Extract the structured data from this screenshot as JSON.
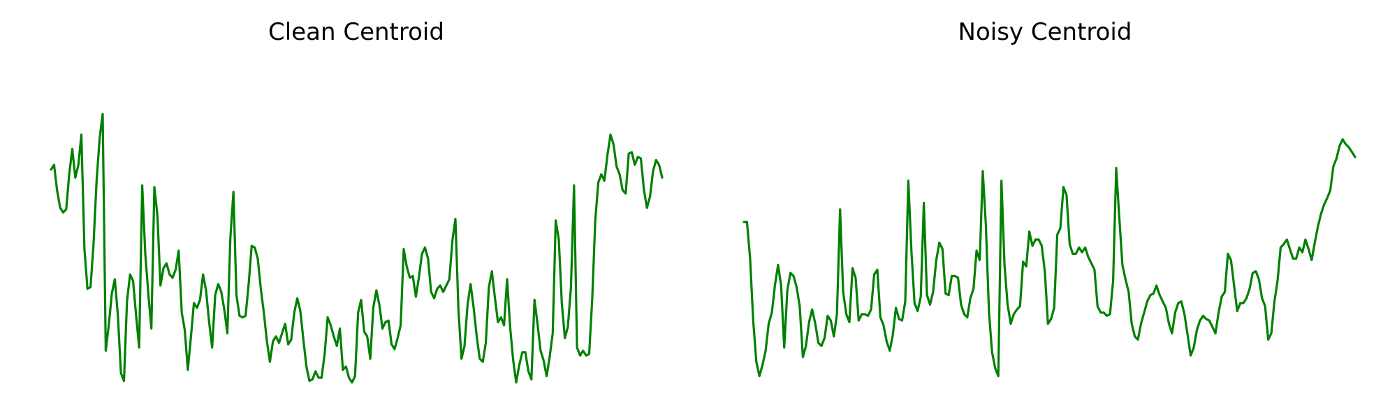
{
  "figure": {
    "background": "#ffffff"
  },
  "chart_data": [
    {
      "type": "line",
      "title": "Clean Centroid",
      "xlabel": "",
      "ylabel": "",
      "axes_visible": false,
      "grid": false,
      "color": "#008000",
      "ylim": [
        -1.0,
        1.0
      ],
      "values": [
        0.35,
        0.38,
        0.22,
        0.11,
        0.08,
        0.1,
        0.32,
        0.48,
        0.3,
        0.38,
        0.57,
        -0.15,
        -0.4,
        -0.39,
        -0.12,
        0.28,
        0.55,
        0.7,
        -0.79,
        -0.63,
        -0.43,
        -0.34,
        -0.57,
        -0.93,
        -0.98,
        -0.48,
        -0.31,
        -0.35,
        -0.57,
        -0.77,
        0.25,
        -0.18,
        -0.43,
        -0.65,
        0.24,
        0.06,
        -0.38,
        -0.27,
        -0.24,
        -0.31,
        -0.33,
        -0.28,
        -0.16,
        -0.55,
        -0.66,
        -0.91,
        -0.71,
        -0.49,
        -0.52,
        -0.47,
        -0.31,
        -0.41,
        -0.61,
        -0.77,
        -0.44,
        -0.37,
        -0.42,
        -0.53,
        -0.68,
        -0.08,
        0.21,
        -0.44,
        -0.57,
        -0.58,
        -0.57,
        -0.37,
        -0.13,
        -0.14,
        -0.21,
        -0.4,
        -0.55,
        -0.73,
        -0.86,
        -0.73,
        -0.7,
        -0.74,
        -0.68,
        -0.62,
        -0.75,
        -0.72,
        -0.55,
        -0.46,
        -0.54,
        -0.72,
        -0.89,
        -0.98,
        -0.97,
        -0.92,
        -0.96,
        -0.96,
        -0.81,
        -0.58,
        -0.63,
        -0.7,
        -0.76,
        -0.65,
        -0.91,
        -0.89,
        -0.96,
        -0.99,
        -0.95,
        -0.55,
        -0.47,
        -0.67,
        -0.7,
        -0.84,
        -0.52,
        -0.41,
        -0.5,
        -0.65,
        -0.61,
        -0.6,
        -0.75,
        -0.78,
        -0.71,
        -0.63,
        -0.15,
        -0.26,
        -0.33,
        -0.32,
        -0.45,
        -0.33,
        -0.18,
        -0.14,
        -0.21,
        -0.42,
        -0.46,
        -0.4,
        -0.38,
        -0.42,
        -0.38,
        -0.34,
        -0.1,
        0.04,
        -0.53,
        -0.84,
        -0.76,
        -0.5,
        -0.37,
        -0.52,
        -0.7,
        -0.84,
        -0.86,
        -0.74,
        -0.39,
        -0.29,
        -0.46,
        -0.61,
        -0.58,
        -0.63,
        -0.34,
        -0.64,
        -0.85,
        -0.99,
        -0.88,
        -0.8,
        -0.8,
        -0.92,
        -0.97,
        -0.47,
        -0.62,
        -0.79,
        -0.85,
        -0.95,
        -0.83,
        -0.68,
        0.03,
        -0.09,
        -0.49,
        -0.71,
        -0.64,
        -0.39,
        0.25,
        -0.77,
        -0.82,
        -0.79,
        -0.82,
        -0.81,
        -0.46,
        0.03,
        0.27,
        0.32,
        0.28,
        0.44,
        0.57,
        0.51,
        0.37,
        0.32,
        0.22,
        0.2,
        0.45,
        0.46,
        0.38,
        0.43,
        0.42,
        0.22,
        0.11,
        0.18,
        0.34,
        0.41,
        0.38,
        0.3
      ]
    },
    {
      "type": "line",
      "title": "Noisy Centroid",
      "xlabel": "",
      "ylabel": "",
      "axes_visible": false,
      "grid": false,
      "color": "#008000",
      "ylim": [
        -1.0,
        1.0
      ],
      "values": [
        0.02,
        0.02,
        -0.21,
        -0.6,
        -0.86,
        -0.95,
        -0.88,
        -0.79,
        -0.62,
        -0.55,
        -0.38,
        -0.25,
        -0.38,
        -0.77,
        -0.41,
        -0.3,
        -0.32,
        -0.39,
        -0.51,
        -0.83,
        -0.76,
        -0.61,
        -0.53,
        -0.62,
        -0.74,
        -0.76,
        -0.71,
        -0.57,
        -0.6,
        -0.7,
        -0.56,
        0.1,
        -0.42,
        -0.56,
        -0.61,
        -0.27,
        -0.33,
        -0.6,
        -0.56,
        -0.56,
        -0.57,
        -0.53,
        -0.31,
        -0.28,
        -0.58,
        -0.63,
        -0.73,
        -0.79,
        -0.69,
        -0.52,
        -0.59,
        -0.6,
        -0.48,
        0.28,
        -0.16,
        -0.49,
        -0.54,
        -0.45,
        0.14,
        -0.44,
        -0.5,
        -0.42,
        -0.22,
        -0.11,
        -0.15,
        -0.43,
        -0.44,
        -0.32,
        -0.32,
        -0.33,
        -0.5,
        -0.56,
        -0.58,
        -0.46,
        -0.4,
        -0.16,
        -0.22,
        0.34,
        0.0,
        -0.55,
        -0.8,
        -0.9,
        -0.95,
        0.28,
        -0.25,
        -0.5,
        -0.62,
        -0.56,
        -0.53,
        -0.51,
        -0.23,
        -0.26,
        -0.04,
        -0.13,
        -0.09,
        -0.09,
        -0.13,
        -0.29,
        -0.62,
        -0.59,
        -0.52,
        -0.06,
        -0.02,
        0.24,
        0.19,
        -0.12,
        -0.18,
        -0.18,
        -0.14,
        -0.17,
        -0.14,
        -0.2,
        -0.24,
        -0.28,
        -0.51,
        -0.55,
        -0.55,
        -0.57,
        -0.56,
        -0.35,
        0.36,
        0.05,
        -0.25,
        -0.34,
        -0.42,
        -0.62,
        -0.7,
        -0.72,
        -0.62,
        -0.55,
        -0.48,
        -0.44,
        -0.43,
        -0.38,
        -0.44,
        -0.48,
        -0.52,
        -0.62,
        -0.68,
        -0.55,
        -0.49,
        -0.48,
        -0.56,
        -0.69,
        -0.82,
        -0.77,
        -0.66,
        -0.6,
        -0.57,
        -0.59,
        -0.6,
        -0.64,
        -0.68,
        -0.55,
        -0.45,
        -0.42,
        -0.18,
        -0.22,
        -0.38,
        -0.54,
        -0.49,
        -0.49,
        -0.46,
        -0.4,
        -0.3,
        -0.29,
        -0.34,
        -0.46,
        -0.51,
        -0.72,
        -0.68,
        -0.48,
        -0.35,
        -0.14,
        -0.12,
        -0.09,
        -0.15,
        -0.21,
        -0.21,
        -0.14,
        -0.17,
        -0.09,
        -0.15,
        -0.22,
        -0.11,
        -0.01,
        0.07,
        0.13,
        0.17,
        0.22,
        0.37,
        0.42,
        0.5,
        0.54,
        0.51,
        0.49,
        0.46,
        0.43
      ]
    }
  ]
}
